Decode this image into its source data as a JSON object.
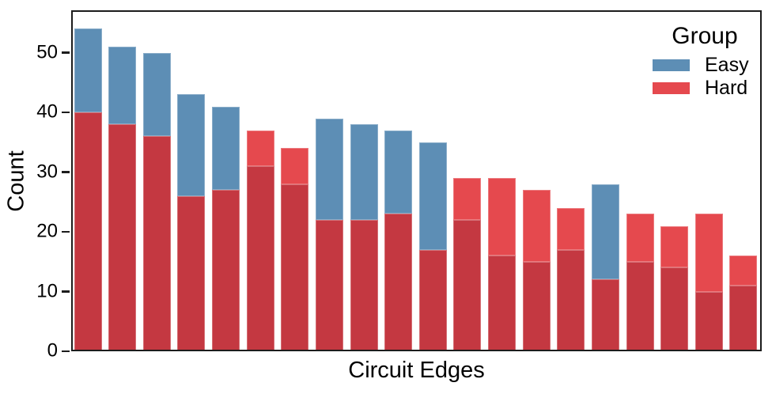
{
  "chart_data": {
    "type": "bar",
    "subtype": "layered-histogram",
    "xlabel": "Circuit Edges",
    "ylabel": "Count",
    "x_tick_labels": [],
    "yticks": [
      0,
      10,
      20,
      30,
      40,
      50
    ],
    "ylim": [
      0,
      57
    ],
    "grid": false,
    "legend": {
      "title": "Group",
      "position": "upper-right"
    },
    "series": [
      {
        "name": "Easy",
        "color": "#5d8eb5",
        "values": [
          54,
          51,
          50,
          43,
          41,
          31,
          28,
          39,
          38,
          37,
          35,
          22,
          16,
          15,
          17,
          28,
          15,
          14,
          10,
          11
        ]
      },
      {
        "name": "Hard",
        "color": "#e5494e",
        "values": [
          40,
          38,
          36,
          26,
          27,
          37,
          34,
          22,
          22,
          23,
          17,
          29,
          29,
          27,
          24,
          12,
          23,
          21,
          23,
          16
        ]
      }
    ],
    "overlap_color": "#c43841"
  }
}
